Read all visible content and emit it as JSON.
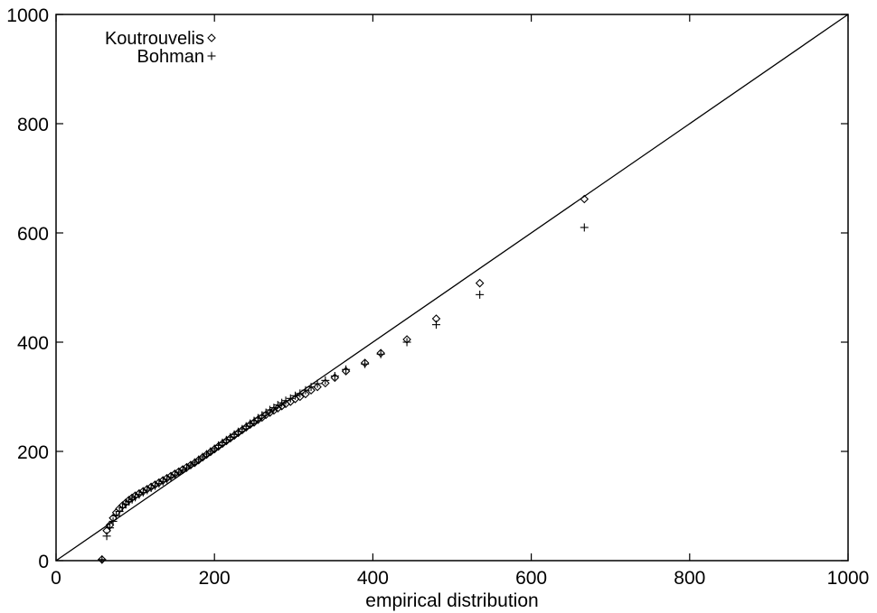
{
  "chart_data": {
    "type": "scatter",
    "title": "",
    "xlabel": "empirical distribution",
    "ylabel": "",
    "xlim": [
      0,
      1000
    ],
    "ylim": [
      0,
      1000
    ],
    "xticks": [
      0,
      200,
      400,
      600,
      800,
      1000
    ],
    "yticks": [
      0,
      200,
      400,
      600,
      800,
      1000
    ],
    "grid": false,
    "legend_position": "top-left",
    "reference_line": {
      "x": [
        0,
        1000
      ],
      "y": [
        0,
        1000
      ]
    },
    "series": [
      {
        "name": "Koutrouvelis",
        "marker": "diamond",
        "x": [
          58,
          64,
          68,
          72,
          76,
          80,
          84,
          88,
          92,
          96,
          100,
          105,
          110,
          115,
          120,
          125,
          130,
          135,
          140,
          145,
          150,
          155,
          160,
          165,
          170,
          175,
          180,
          185,
          190,
          195,
          200,
          205,
          210,
          215,
          220,
          225,
          230,
          235,
          240,
          245,
          250,
          255,
          260,
          265,
          270,
          275,
          280,
          285,
          290,
          296,
          302,
          308,
          315,
          322,
          330,
          340,
          352,
          366,
          390,
          410,
          443,
          480,
          535,
          667
        ],
        "y": [
          2,
          55,
          65,
          78,
          88,
          95,
          101,
          106,
          111,
          115,
          119,
          123,
          127,
          131,
          135,
          139,
          143,
          147,
          151,
          155,
          159,
          163,
          167,
          171,
          175,
          179,
          184,
          189,
          194,
          199,
          204,
          209,
          214,
          219,
          224,
          229,
          234,
          239,
          244,
          249,
          253,
          258,
          262,
          267,
          271,
          275,
          279,
          283,
          287,
          291,
          296,
          300,
          305,
          312,
          318,
          325,
          335,
          347,
          362,
          380,
          405,
          443,
          508,
          662
        ]
      },
      {
        "name": "Bohman",
        "marker": "plus",
        "x": [
          58,
          64,
          68,
          72,
          76,
          80,
          84,
          88,
          92,
          96,
          100,
          105,
          110,
          115,
          120,
          125,
          130,
          135,
          140,
          145,
          150,
          155,
          160,
          165,
          170,
          175,
          180,
          185,
          190,
          195,
          200,
          205,
          210,
          215,
          220,
          225,
          230,
          235,
          240,
          245,
          250,
          255,
          260,
          265,
          270,
          275,
          280,
          285,
          290,
          296,
          302,
          308,
          315,
          322,
          330,
          340,
          352,
          366,
          390,
          410,
          443,
          480,
          535,
          667
        ],
        "y": [
          2,
          45,
          60,
          72,
          82,
          90,
          97,
          103,
          108,
          112,
          116,
          121,
          125,
          129,
          133,
          137,
          141,
          145,
          149,
          153,
          157,
          162,
          166,
          170,
          175,
          180,
          185,
          190,
          195,
          200,
          205,
          211,
          216,
          221,
          226,
          231,
          236,
          241,
          246,
          251,
          256,
          261,
          266,
          271,
          276,
          280,
          285,
          289,
          293,
          297,
          302,
          306,
          312,
          318,
          324,
          330,
          338,
          350,
          360,
          378,
          400,
          432,
          487,
          610
        ]
      }
    ]
  }
}
